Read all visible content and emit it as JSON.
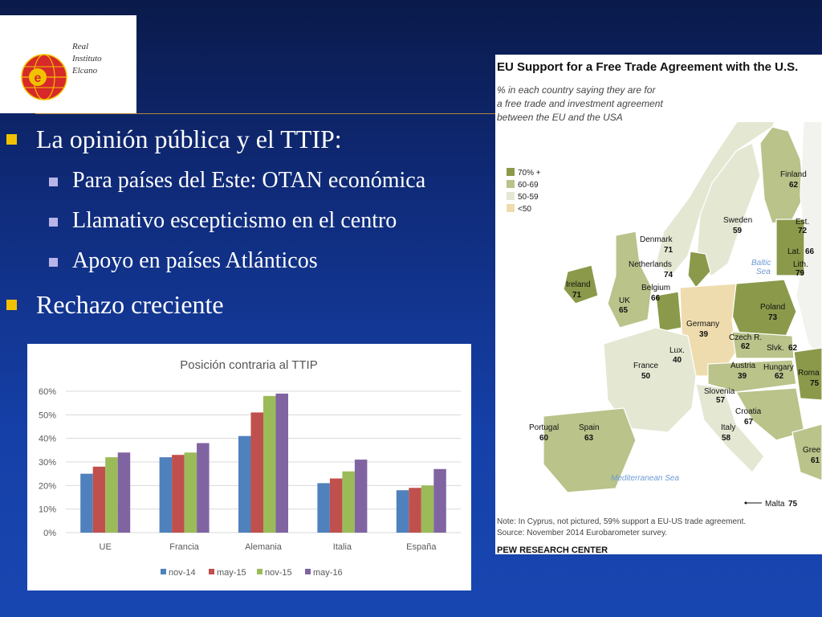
{
  "logo": {
    "lines": [
      "Real",
      "Instituto",
      "Elcano"
    ],
    "mark_letter": "e"
  },
  "bullets": [
    {
      "level": 1,
      "text": "La opinión pública y el TTIP:"
    },
    {
      "level": 2,
      "text": "Para países del Este: OTAN económica"
    },
    {
      "level": 2,
      "text": "Llamativo escepticismo en el centro"
    },
    {
      "level": 2,
      "text": "Apoyo en países Atlánticos"
    },
    {
      "level": 1,
      "text": "Rechazo creciente"
    }
  ],
  "chart_data": {
    "type": "bar",
    "title": "Posición contraria al TTIP",
    "categories": [
      "UE",
      "Francia",
      "Alemania",
      "Italia",
      "España"
    ],
    "series": [
      {
        "name": "nov-14",
        "color": "#4f81bd",
        "values": [
          25,
          32,
          41,
          21,
          18
        ]
      },
      {
        "name": "may-15",
        "color": "#c0504d",
        "values": [
          28,
          33,
          51,
          23,
          19
        ]
      },
      {
        "name": "nov-15",
        "color": "#9bbb59",
        "values": [
          32,
          34,
          58,
          26,
          20
        ]
      },
      {
        "name": "may-16",
        "color": "#8064a2",
        "values": [
          34,
          38,
          59,
          31,
          27
        ]
      }
    ],
    "ylim": [
      0,
      60
    ],
    "yticks": [
      "0%",
      "10%",
      "20%",
      "30%",
      "40%",
      "50%",
      "60%"
    ],
    "grid": true,
    "legend": "bottom"
  },
  "map": {
    "title": "EU Support for a Free Trade Agreement with the U.S.",
    "subtitle": [
      "% in each country saying they are for",
      "a free trade and investment agreement",
      "between the EU and the USA"
    ],
    "legend": [
      {
        "label": "70% +",
        "color": "#8a9a4a"
      },
      {
        "label": "60-69",
        "color": "#b9c38a"
      },
      {
        "label": "50-59",
        "color": "#e4e7d2"
      },
      {
        "label": "<50",
        "color": "#efdcae"
      }
    ],
    "countries": [
      {
        "name": "Finland",
        "value": "62"
      },
      {
        "name": "Sweden",
        "value": "59"
      },
      {
        "name": "Est.",
        "value": "72"
      },
      {
        "name": "Lat.",
        "value": "66"
      },
      {
        "name": "Lith.",
        "value": "79"
      },
      {
        "name": "Denmark",
        "value": "71"
      },
      {
        "name": "Netherlands",
        "value": "74"
      },
      {
        "name": "Ireland",
        "value": "71"
      },
      {
        "name": "UK",
        "value": "65"
      },
      {
        "name": "Belgium",
        "value": "66"
      },
      {
        "name": "Poland",
        "value": "73"
      },
      {
        "name": "Germany",
        "value": "39"
      },
      {
        "name": "Czech R.",
        "value": "62"
      },
      {
        "name": "Slvk.",
        "value": "62"
      },
      {
        "name": "Lux.",
        "value": "40"
      },
      {
        "name": "France",
        "value": "50"
      },
      {
        "name": "Austria",
        "value": "39"
      },
      {
        "name": "Hungary",
        "value": "62"
      },
      {
        "name": "Roma",
        "value": "75"
      },
      {
        "name": "Slovenia",
        "value": "57"
      },
      {
        "name": "Croatia",
        "value": "67"
      },
      {
        "name": "Portugal",
        "value": "60"
      },
      {
        "name": "Spain",
        "value": "63"
      },
      {
        "name": "Italy",
        "value": "58"
      },
      {
        "name": "Gree",
        "value": "61"
      },
      {
        "name": "Malta",
        "value": "75"
      }
    ],
    "seas": [
      "Baltic",
      "Sea",
      "Mediterranean Sea"
    ],
    "note": "Note: In Cyprus, not pictured, 59% support a EU-US trade agreement.",
    "source": "Source: November 2014 Eurobarometer survey.",
    "footer": "PEW RESEARCH CENTER"
  }
}
